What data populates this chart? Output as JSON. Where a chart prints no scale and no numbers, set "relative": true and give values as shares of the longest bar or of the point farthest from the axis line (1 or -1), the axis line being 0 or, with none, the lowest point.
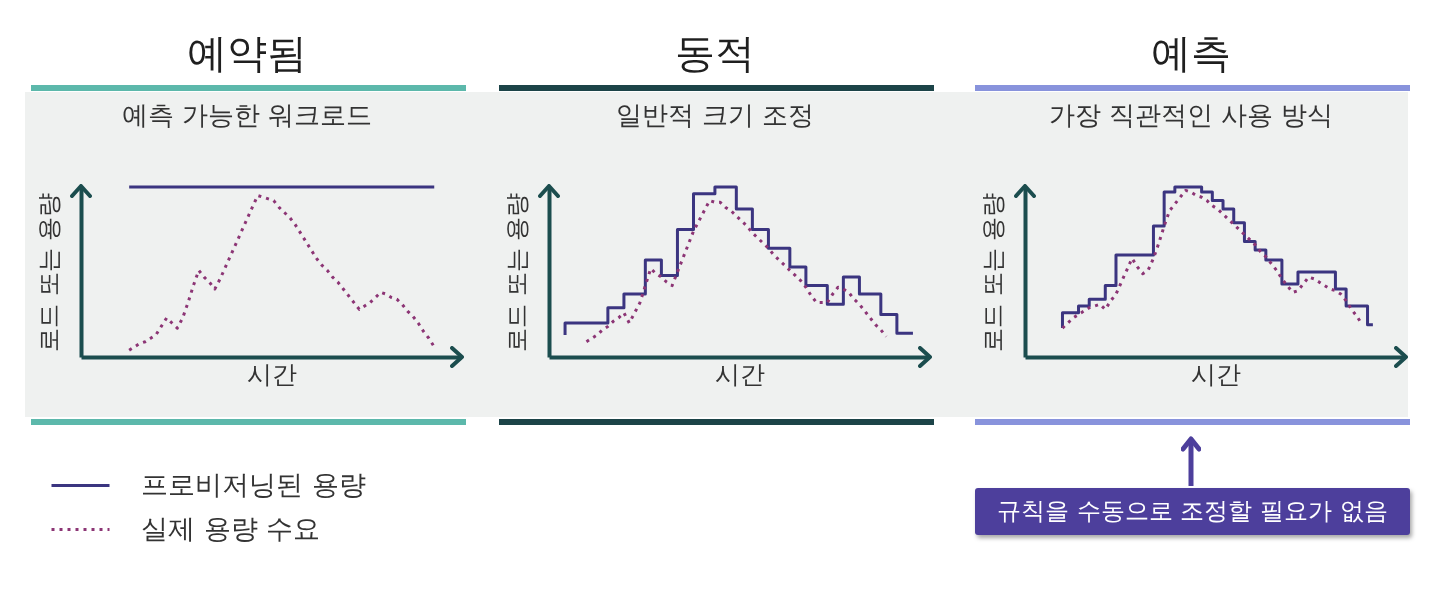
{
  "chart_data": [
    {
      "type": "line",
      "title": "예약됨",
      "subtitle": "예측 가능한 워크로드",
      "xlabel": "시간",
      "ylabel": "로드 또는 용량",
      "categories": [
        null,
        null,
        null,
        null,
        null,
        null,
        null,
        null,
        null,
        null,
        null,
        null,
        null,
        null,
        null,
        null,
        null,
        null,
        null,
        null,
        null,
        null,
        null,
        null,
        null,
        null,
        null,
        null,
        null,
        null,
        null,
        null,
        null,
        null,
        null,
        null,
        null,
        null,
        null,
        null,
        null,
        null,
        null,
        null,
        null,
        null,
        null,
        null,
        null,
        null,
        null,
        null,
        null,
        null,
        null,
        null,
        null,
        null,
        null,
        null,
        null,
        null,
        null,
        null,
        null,
        null,
        null,
        null,
        null,
        null,
        null,
        null
      ],
      "relative": true,
      "tick_labels": false,
      "legend": "bottom left",
      "series": [
        {
          "name": "프로비저닝된 용량",
          "color": "#3b3580",
          "line_style": "solid",
          "values": [
            null,
            null,
            null,
            null,
            null,
            null,
            null,
            null,
            null,
            1,
            1,
            1,
            1,
            1,
            1,
            1,
            1,
            1,
            1,
            1,
            1,
            1,
            1,
            1,
            1,
            1,
            1,
            1,
            1,
            1,
            1,
            1,
            1,
            1,
            1,
            1,
            1,
            1,
            1,
            1,
            1,
            1,
            1,
            1,
            1,
            1,
            1,
            1,
            1,
            1,
            1,
            1,
            1,
            1,
            1,
            1,
            1,
            1,
            1,
            1,
            1,
            1,
            1,
            1,
            1,
            1,
            1,
            null,
            null,
            null,
            null,
            null
          ]
        },
        {
          "name": "실제 용량 수요",
          "color": "#8c3575",
          "line_style": "dotted",
          "values": [
            null,
            null,
            null,
            null,
            null,
            null,
            null,
            null,
            null,
            0.04,
            0.06,
            0.08,
            0.09,
            0.11,
            0.13,
            0.18,
            0.23,
            0.2,
            0.17,
            0.23,
            0.32,
            0.42,
            0.51,
            0.47,
            0.44,
            0.4,
            0.46,
            0.53,
            0.6,
            0.67,
            0.74,
            0.81,
            0.88,
            0.95,
            0.94,
            0.93,
            0.92,
            0.88,
            0.85,
            0.82,
            0.78,
            0.73,
            0.68,
            0.63,
            0.58,
            0.54,
            0.51,
            0.47,
            0.44,
            0.4,
            0.36,
            0.32,
            0.28,
            0.3,
            0.32,
            0.35,
            0.38,
            0.37,
            0.35,
            0.34,
            0.31,
            0.27,
            0.24,
            0.2,
            0.15,
            0.11,
            0.06,
            null,
            null,
            null,
            null,
            null
          ]
        }
      ]
    },
    {
      "type": "step",
      "title": "동적",
      "subtitle": "일반적 크기 조정",
      "xlabel": "시간",
      "ylabel": "로드 또는 용량",
      "categories": [
        null,
        null,
        null,
        null,
        null,
        null,
        null,
        null,
        null,
        null,
        null,
        null,
        null,
        null,
        null,
        null,
        null,
        null,
        null,
        null,
        null,
        null,
        null,
        null,
        null,
        null,
        null,
        null,
        null,
        null,
        null,
        null,
        null,
        null,
        null,
        null,
        null,
        null,
        null,
        null,
        null,
        null,
        null,
        null,
        null,
        null,
        null,
        null,
        null,
        null,
        null,
        null,
        null,
        null,
        null,
        null,
        null,
        null,
        null,
        null,
        null,
        null,
        null,
        null,
        null,
        null,
        null,
        null,
        null,
        null,
        null,
        null
      ],
      "relative": true,
      "tick_labels": false,
      "series": [
        {
          "color": "#3b3580",
          "line_style": "solid",
          "values": [
            null,
            null,
            null,
            0.13,
            0.2,
            0.2,
            0.2,
            0.2,
            0.2,
            0.2,
            0.2,
            0.2,
            0.29,
            0.29,
            0.29,
            0.37,
            0.37,
            0.37,
            0.37,
            0.57,
            0.57,
            0.57,
            0.48,
            0.48,
            0.48,
            0.75,
            0.75,
            0.75,
            0.96,
            0.96,
            0.96,
            0.96,
            1,
            1,
            1,
            1,
            0.87,
            0.87,
            0.87,
            0.75,
            0.75,
            0.75,
            0.64,
            0.64,
            0.64,
            0.64,
            0.53,
            0.53,
            0.53,
            0.42,
            0.42,
            0.42,
            0.42,
            0.31,
            0.31,
            0.31,
            0.47,
            0.47,
            0.47,
            0.37,
            0.37,
            0.37,
            0.37,
            0.25,
            0.25,
            0.25,
            0.14,
            0.14,
            0.14,
            null,
            null,
            null
          ]
        },
        {
          "type": "line",
          "color": "#8c3575",
          "line_style": "dotted",
          "values": [
            null,
            null,
            null,
            null,
            null,
            null,
            null,
            0.09,
            0.11,
            0.13,
            0.16,
            0.18,
            0.21,
            0.23,
            0.26,
            0.2,
            0.26,
            0.32,
            0.42,
            0.52,
            0.49,
            0.47,
            0.44,
            0.42,
            0.5,
            0.58,
            0.66,
            0.74,
            0.8,
            0.86,
            0.92,
            0.91,
            0.91,
            0.88,
            0.86,
            0.83,
            0.8,
            0.77,
            0.73,
            0.7,
            0.67,
            0.64,
            0.6,
            0.57,
            0.54,
            0.51,
            0.48,
            0.45,
            0.41,
            0.36,
            0.32,
            0.32,
            0.32,
            0.37,
            0.41,
            0.4,
            0.38,
            0.34,
            0.31,
            0.27,
            0.23,
            0.19,
            0.16,
            0.12,
            null,
            null,
            null,
            null,
            null,
            null,
            null,
            null
          ]
        }
      ]
    },
    {
      "type": "step",
      "title": "예측",
      "subtitle": "가장 직관적인 사용 방식",
      "xlabel": "시간",
      "ylabel": "로드 또는 용량",
      "categories": [
        null,
        null,
        null,
        null,
        null,
        null,
        null,
        null,
        null,
        null,
        null,
        null,
        null,
        null,
        null,
        null,
        null,
        null,
        null,
        null,
        null,
        null,
        null,
        null,
        null,
        null,
        null,
        null,
        null,
        null,
        null,
        null,
        null,
        null,
        null,
        null,
        null,
        null,
        null,
        null,
        null,
        null,
        null,
        null,
        null,
        null,
        null,
        null,
        null,
        null,
        null,
        null,
        null,
        null,
        null,
        null,
        null,
        null,
        null,
        null,
        null,
        null,
        null,
        null,
        null,
        null,
        null,
        null,
        null,
        null,
        null,
        null
      ],
      "relative": true,
      "tick_labels": false,
      "annotations": [
        "규칙을 수동으로 조정할 필요가 없음"
      ],
      "series": [
        {
          "color": "#3b3580",
          "line_style": "solid",
          "values": [
            null,
            null,
            null,
            null,
            null,
            null,
            null,
            0.17,
            0.26,
            0.26,
            0.26,
            0.3,
            0.3,
            0.34,
            0.34,
            0.34,
            0.42,
            0.42,
            0.6,
            0.6,
            0.6,
            0.6,
            0.6,
            0.6,
            0.6,
            0.77,
            0.77,
            0.97,
            0.97,
            1,
            1,
            1,
            1,
            1,
            0.97,
            0.97,
            0.92,
            0.92,
            0.87,
            0.87,
            0.79,
            0.79,
            0.68,
            0.68,
            0.63,
            0.63,
            0.57,
            0.57,
            0.57,
            0.43,
            0.43,
            0.43,
            0.5,
            0.5,
            0.5,
            0.5,
            0.5,
            0.5,
            0.5,
            0.4,
            0.4,
            0.3,
            0.3,
            0.3,
            0.3,
            0.19,
            null,
            null,
            null,
            null,
            null,
            null
          ]
        },
        {
          "type": "line",
          "color": "#8c3575",
          "line_style": "dotted",
          "values": [
            null,
            null,
            null,
            null,
            null,
            null,
            null,
            0.17,
            0.2,
            0.23,
            0.25,
            0.27,
            0.29,
            0.3,
            0.31,
            0.28,
            0.33,
            0.37,
            0.44,
            0.51,
            0.58,
            0.53,
            0.49,
            0.51,
            0.58,
            0.67,
            0.77,
            0.86,
            0.9,
            0.94,
            0.98,
            0.97,
            0.95,
            0.94,
            0.92,
            0.89,
            0.87,
            0.84,
            0.81,
            0.78,
            0.75,
            0.72,
            0.69,
            0.66,
            0.62,
            0.59,
            0.55,
            0.51,
            0.46,
            0.42,
            0.38,
            0.39,
            0.43,
            0.47,
            0.46,
            0.44,
            0.42,
            0.4,
            0.39,
            0.37,
            0.33,
            0.28,
            0.24,
            0.19,
            null,
            null,
            null,
            null,
            null,
            null,
            null,
            null
          ]
        }
      ]
    }
  ]
}
